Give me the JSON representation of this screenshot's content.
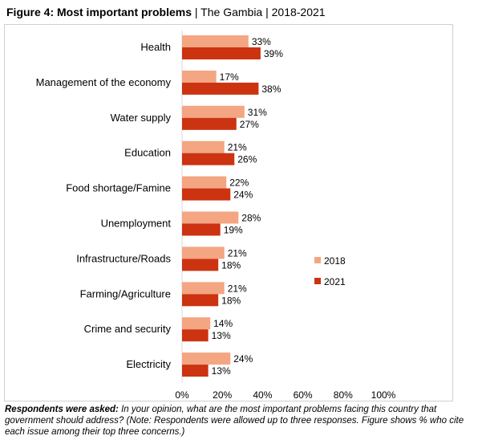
{
  "header": {
    "title_bold": "Figure 4: Most important problems",
    "title_rest": " | The Gambia | 2018-2021"
  },
  "note": {
    "lead": "Respondents were asked:",
    "text": " In your opinion, what are the most important problems facing this country that government should address? (Note: Respondents were allowed up to three responses. Figure shows % who cite each issue among their top three concerns.)"
  },
  "chart_data": {
    "type": "bar",
    "orientation": "horizontal",
    "categories": [
      "Health",
      "Management of the economy",
      "Water supply",
      "Education",
      "Food shortage/Famine",
      "Unemployment",
      "Infrastructure/Roads",
      "Farming/Agriculture",
      "Crime and security",
      "Electricity"
    ],
    "series": [
      {
        "name": "2018",
        "color": "#f4a582",
        "values": [
          33,
          17,
          31,
          21,
          22,
          28,
          21,
          21,
          14,
          24
        ]
      },
      {
        "name": "2021",
        "color": "#cc3311",
        "values": [
          39,
          38,
          27,
          26,
          24,
          19,
          18,
          18,
          13,
          13
        ]
      }
    ],
    "xlim": [
      0,
      100
    ],
    "xticks": [
      0,
      20,
      40,
      60,
      80,
      100
    ],
    "value_suffix": "%",
    "grid": false,
    "legend_position": "right"
  }
}
